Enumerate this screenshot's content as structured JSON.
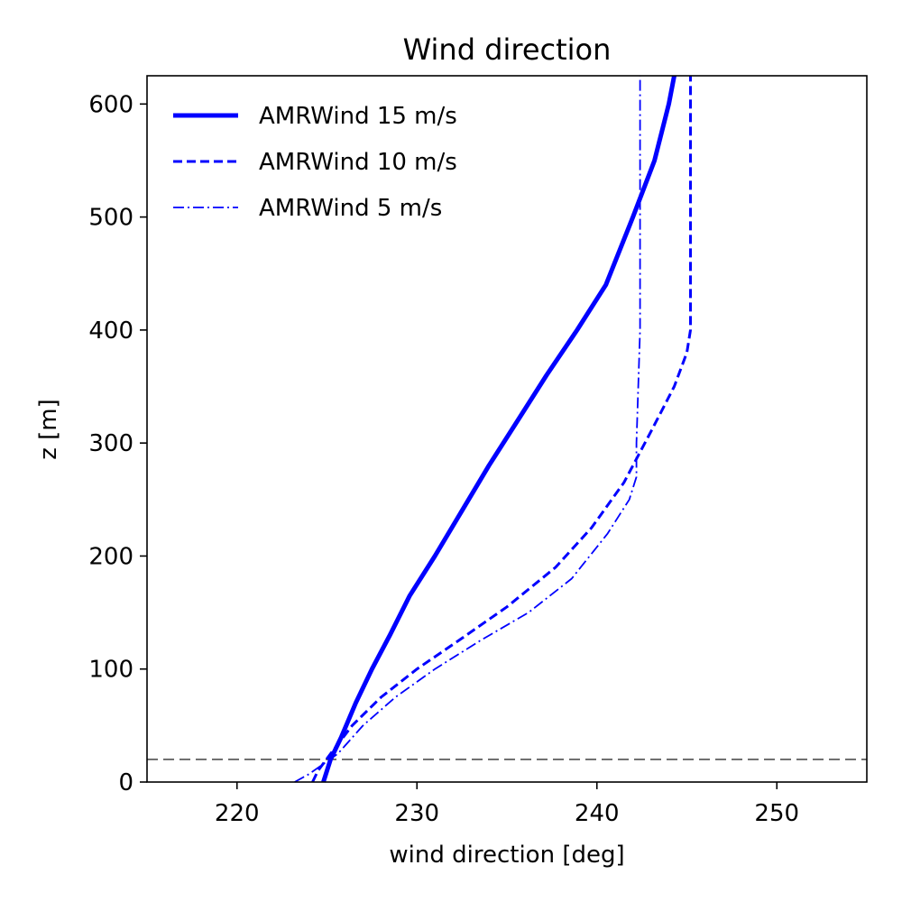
{
  "chart_data": {
    "type": "line",
    "title": "Wind direction",
    "xlabel": "wind direction [deg]",
    "ylabel": "z [m]",
    "xlim": [
      215,
      255
    ],
    "ylim": [
      0,
      625
    ],
    "xticks": [
      220,
      230,
      240,
      250
    ],
    "yticks": [
      0,
      100,
      200,
      300,
      400,
      500,
      600
    ],
    "xtick_labels": [
      "220",
      "230",
      "240",
      "250"
    ],
    "ytick_labels": [
      "0",
      "100",
      "200",
      "300",
      "400",
      "500",
      "600"
    ],
    "grid": false,
    "legend": "top-left",
    "reference_line": {
      "y": 20,
      "style": "dashed",
      "color": "#000000"
    },
    "series": [
      {
        "name": "AMRWind 15 m/s",
        "style": "solid",
        "color": "#0000ff",
        "x": [
          224.8,
          225.2,
          225.8,
          226.6,
          227.5,
          228.5,
          229.6,
          231.0,
          232.5,
          234.0,
          235.6,
          237.2,
          238.9,
          240.5,
          242.0,
          243.2,
          244.0,
          244.3
        ],
        "y": [
          0,
          20,
          40,
          70,
          100,
          130,
          165,
          200,
          240,
          280,
          320,
          360,
          400,
          440,
          500,
          550,
          600,
          625
        ]
      },
      {
        "name": "AMRWind 10 m/s",
        "style": "dashed",
        "color": "#0000ff",
        "x": [
          224.2,
          224.5,
          225.2,
          226.4,
          228.0,
          230.0,
          232.3,
          235.0,
          237.7,
          239.7,
          241.5,
          243.0,
          244.3,
          245.0,
          245.2,
          245.2
        ],
        "y": [
          0,
          10,
          25,
          50,
          75,
          100,
          125,
          155,
          190,
          225,
          265,
          310,
          350,
          380,
          400,
          625
        ]
      },
      {
        "name": "AMRWind 5 m/s",
        "style": "dashdot",
        "color": "#0000ff",
        "x": [
          223.2,
          224.0,
          225.6,
          227.0,
          228.8,
          231.0,
          233.5,
          236.2,
          238.6,
          240.6,
          241.8,
          242.2,
          242.2,
          242.4,
          242.4
        ],
        "y": [
          0,
          7,
          25,
          50,
          75,
          100,
          125,
          150,
          180,
          220,
          250,
          270,
          300,
          400,
          625
        ]
      }
    ]
  }
}
